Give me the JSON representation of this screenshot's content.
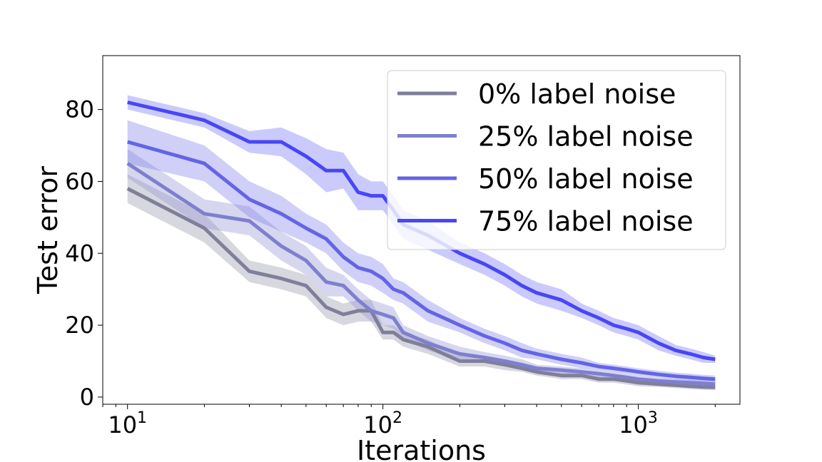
{
  "chart_data": {
    "type": "line",
    "title": "",
    "xlabel": "Iterations",
    "ylabel": "Test error",
    "xscale": "log",
    "xlim": [
      8,
      2500
    ],
    "ylim": [
      -2,
      95
    ],
    "yticks": [
      0,
      20,
      40,
      60,
      80
    ],
    "xticks": [
      10,
      100,
      1000
    ],
    "xtick_labels": [
      {
        "base": "10",
        "exp": "1"
      },
      {
        "base": "10",
        "exp": "2"
      },
      {
        "base": "10",
        "exp": "3"
      }
    ],
    "grid": false,
    "legend_position": "top-right",
    "x": [
      10,
      20,
      30,
      40,
      50,
      60,
      70,
      80,
      90,
      100,
      110,
      120,
      150,
      200,
      250,
      300,
      350,
      400,
      500,
      600,
      700,
      800,
      900,
      1000,
      1200,
      1400,
      1600,
      1800,
      2000
    ],
    "series": [
      {
        "name": "0% label noise",
        "color": "#7f7f9a",
        "band_color": "#9c9cae",
        "values": [
          58,
          47,
          35,
          33,
          31,
          25,
          23,
          24,
          24,
          18,
          18,
          16,
          14,
          10,
          10,
          9,
          8,
          7,
          6,
          6,
          5,
          5,
          4.5,
          4,
          3.6,
          3.3,
          3,
          2.8,
          2.7
        ],
        "band": [
          4,
          4,
          3,
          3,
          3,
          3,
          3,
          3,
          3,
          2,
          2,
          2,
          2,
          1.5,
          1.5,
          1.5,
          1,
          1,
          1,
          1,
          1,
          1,
          1,
          1,
          0.8,
          0.8,
          0.8,
          0.8,
          0.8
        ]
      },
      {
        "name": "25% label noise",
        "color": "#7f7fd0",
        "band_color": "#9999d8",
        "values": [
          65,
          51,
          49,
          42,
          38,
          32,
          31,
          27,
          24,
          23,
          22,
          18,
          15,
          12,
          11,
          10,
          9,
          8,
          7.5,
          7,
          6.5,
          6,
          5.5,
          5,
          4.5,
          4.2,
          4,
          3.8,
          3.6
        ],
        "band": [
          4,
          4,
          4,
          4,
          4,
          4,
          3,
          3,
          3,
          3,
          3,
          2,
          2,
          2,
          1.5,
          1.5,
          1.5,
          1,
          1,
          1,
          1,
          1,
          1,
          1,
          0.8,
          0.8,
          0.8,
          0.8,
          0.8
        ]
      },
      {
        "name": "50% label noise",
        "color": "#6464e6",
        "band_color": "#8888ee",
        "values": [
          71,
          65,
          55,
          51,
          47,
          44,
          39,
          36,
          35,
          33,
          30,
          29,
          24,
          20,
          17,
          15,
          13,
          12,
          10.5,
          9.5,
          8.5,
          8,
          7.5,
          7,
          6.3,
          5.8,
          5.5,
          5.2,
          5
        ],
        "band": [
          6,
          5,
          5,
          5,
          4,
          4,
          4,
          4,
          4,
          4,
          3,
          3,
          3,
          2,
          2,
          2,
          2,
          1.5,
          1.5,
          1.5,
          1,
          1,
          1,
          1,
          1,
          1,
          1,
          1,
          1
        ]
      },
      {
        "name": "75% label noise",
        "color": "#4747f5",
        "band_color": "#7a7af8",
        "values": [
          82,
          77,
          71,
          71,
          67,
          63,
          63,
          57,
          56,
          56,
          52,
          48,
          45,
          40,
          37,
          34,
          31,
          29,
          27,
          24,
          22,
          20,
          19,
          18,
          15,
          13,
          12,
          11,
          10.5
        ],
        "band": [
          2,
          2,
          3,
          4,
          5,
          6,
          5,
          5,
          4,
          4,
          4,
          4,
          4,
          3,
          3,
          3,
          3,
          3,
          3,
          2,
          2,
          2,
          2,
          2,
          2,
          1.5,
          1.5,
          1.5,
          1
        ]
      }
    ]
  }
}
